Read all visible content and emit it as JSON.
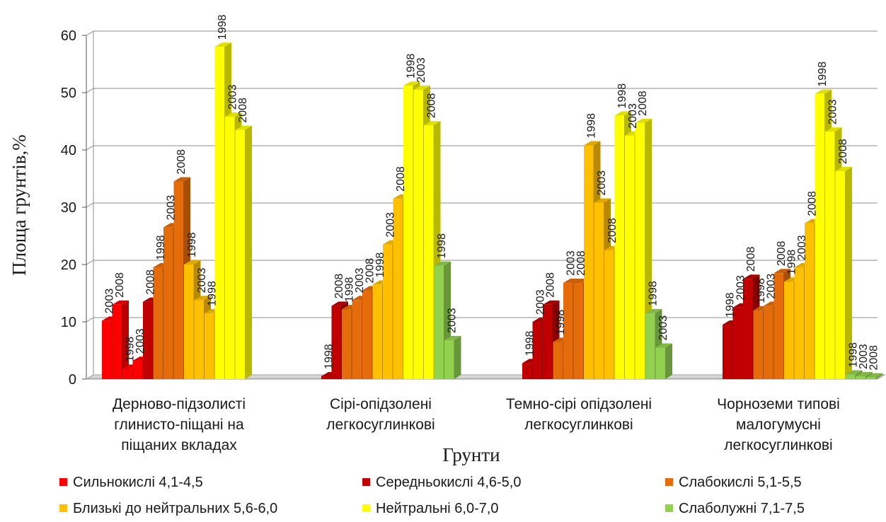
{
  "chart_data": {
    "type": "bar",
    "ylabel": "Площа  грунтів,%",
    "xlabel": "Грунти",
    "ylim": [
      0,
      60
    ],
    "yticks": [
      "0",
      "10",
      "20",
      "30",
      "40",
      "50",
      "60"
    ],
    "grid": true,
    "legend_position": "bottom",
    "categories": [
      [
        "Дерново-підзолисті",
        "глинисто-піщані на",
        "піщаних вкладах"
      ],
      [
        "Сірі-опідзолені",
        "легкосуглинкові"
      ],
      [
        "Темно-сірі опідзолені",
        "легкосуглинкові"
      ],
      [
        "Чорноземи типові",
        "малогумусні",
        "легкосуглинкові"
      ]
    ],
    "series": [
      {
        "name": "Сильнокислі 4,1-4,5",
        "color": "#ff0000",
        "groups": [
          [
            {
              "label": "2003",
              "value": 10.2
            },
            {
              "label": "2008",
              "value": 13.0
            },
            {
              "label": "1998",
              "value": 1.8
            },
            {
              "label": "2003",
              "value": 3.2
            }
          ],
          [],
          [],
          []
        ]
      },
      {
        "name": "Середньокислі 4,6-5,0",
        "color": "#c00000",
        "groups": [
          [
            {
              "label": "2008",
              "value": 13.5
            }
          ],
          [
            {
              "label": "1998",
              "value": 0.5
            },
            {
              "label": "2008",
              "value": 12.8
            }
          ],
          [
            {
              "label": "1998",
              "value": 2.8
            },
            {
              "label": "2003",
              "value": 10.0
            },
            {
              "label": "2008",
              "value": 13.0
            }
          ],
          [
            {
              "label": "1998",
              "value": 9.5
            },
            {
              "label": "2003",
              "value": 12.5
            },
            {
              "label": "2008",
              "value": 17.5
            }
          ]
        ]
      },
      {
        "name": "Слабокислі 5,1-5,5",
        "color": "#e46c0a",
        "groups": [
          [
            {
              "label": "1998",
              "value": 19.5
            },
            {
              "label": "2003",
              "value": 26.5
            },
            {
              "label": "2008",
              "value": 34.5
            }
          ],
          [
            {
              "label": "1998",
              "value": 12.2
            },
            {
              "label": "2003",
              "value": 13.8
            },
            {
              "label": "2008",
              "value": 15.5
            }
          ],
          [
            {
              "label": "1998",
              "value": 6.5
            },
            {
              "label": "2003",
              "value": 16.8
            },
            {
              "label": "2008",
              "value": 16.8
            }
          ],
          [
            {
              "label": "1998",
              "value": 12.0
            },
            {
              "label": "2003",
              "value": 12.8
            },
            {
              "label": "2008",
              "value": 18.5
            }
          ]
        ]
      },
      {
        "name": "Близькі до нейтральних 5,6-6,0",
        "color": "#ffc000",
        "groups": [
          [
            {
              "label": "1998",
              "value": 20.0
            },
            {
              "label": "2003",
              "value": 13.8
            },
            {
              "label": "1998",
              "value": 11.5
            }
          ],
          [
            {
              "label": "1998",
              "value": 16.5
            },
            {
              "label": "2003",
              "value": 23.5
            },
            {
              "label": "2008",
              "value": 31.5
            }
          ],
          [
            {
              "label": "1998",
              "value": 40.8
            },
            {
              "label": "2003",
              "value": 30.8
            },
            {
              "label": "2008",
              "value": 22.5
            }
          ],
          [
            {
              "label": "1998",
              "value": 17.0
            },
            {
              "label": "2003",
              "value": 19.5
            },
            {
              "label": "2008",
              "value": 27.2
            }
          ]
        ]
      },
      {
        "name": "Нейтральні 6,0-7,0",
        "color": "#ffff00",
        "groups": [
          [
            {
              "label": "1998",
              "value": 58.0
            },
            {
              "label": "2003",
              "value": 45.8
            },
            {
              "label": "2008",
              "value": 43.5
            }
          ],
          [
            {
              "label": "1998",
              "value": 51.2
            },
            {
              "label": "2003",
              "value": 50.5
            },
            {
              "label": "2008",
              "value": 44.3
            }
          ],
          [
            {
              "label": "1998",
              "value": 46.0
            },
            {
              "label": "2003",
              "value": 42.5
            },
            {
              "label": "2008",
              "value": 44.7
            }
          ],
          [
            {
              "label": "1998",
              "value": 49.8
            },
            {
              "label": "2003",
              "value": 43.2
            },
            {
              "label": "2008",
              "value": 36.3
            }
          ]
        ]
      },
      {
        "name": "Слаболужні 7,1-7,5",
        "color": "#92d050",
        "groups": [
          [],
          [
            {
              "label": "1998",
              "value": 19.8
            },
            {
              "label": "2003",
              "value": 6.8
            }
          ],
          [
            {
              "label": "1998",
              "value": 11.5
            },
            {
              "label": "2003",
              "value": 5.5
            }
          ],
          [
            {
              "label": "1998",
              "value": 0.8
            },
            {
              "label": "2003",
              "value": 0.5
            },
            {
              "label": "2008",
              "value": 0.3
            }
          ]
        ]
      }
    ]
  }
}
